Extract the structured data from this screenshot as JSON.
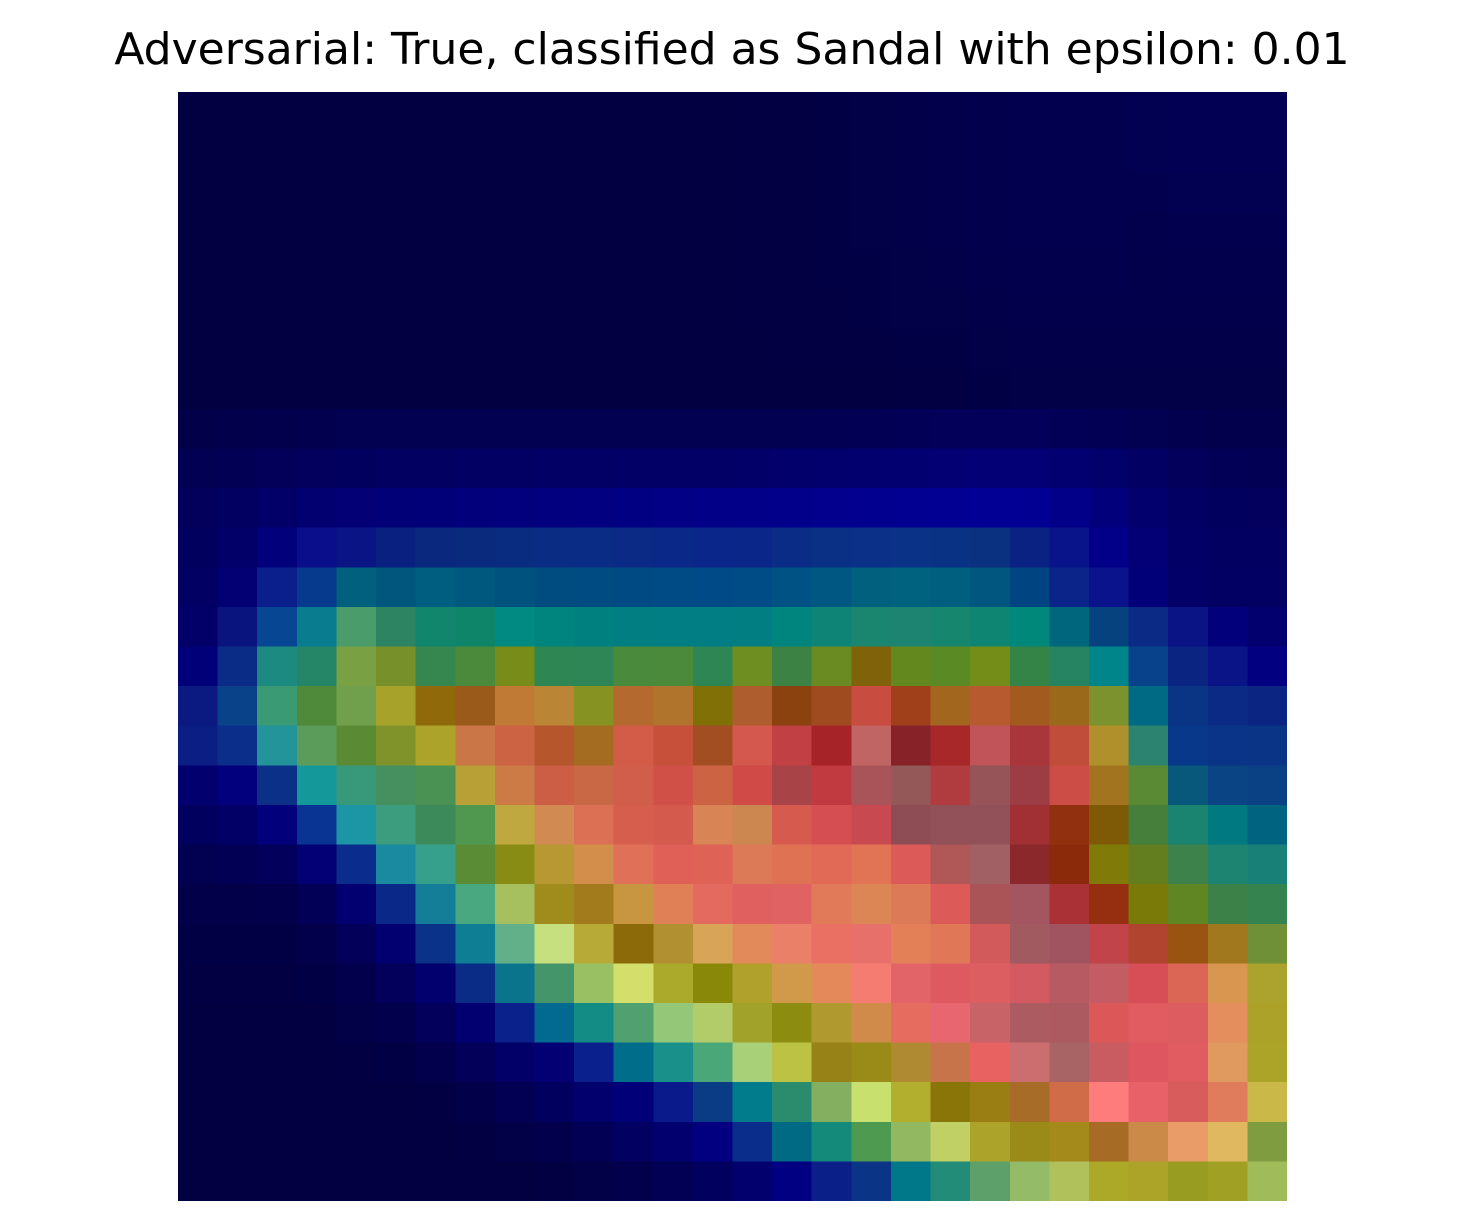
{
  "chart_data": {
    "type": "heatmap",
    "title": "Adversarial: True, classified as Sandal with epsilon: 0.01",
    "xlabel": "",
    "ylabel": "",
    "axes_visible": false,
    "grid": false,
    "rows": 28,
    "cols": 28,
    "cell_colors": [
      [
        "#020040",
        "#020040",
        "#020040",
        "#020040",
        "#020040",
        "#020040",
        "#020040",
        "#020040",
        "#020040",
        "#020040",
        "#020040",
        "#020040",
        "#020040",
        "#020040",
        "#020042",
        "#020042",
        "#020044",
        "#020046",
        "#020048",
        "#02004a",
        "#02004c",
        "#02004e",
        "#02004e",
        "#02004e",
        "#020050",
        "#020052",
        "#020052",
        "#020052"
      ],
      [
        "#020040",
        "#020040",
        "#020040",
        "#020040",
        "#020040",
        "#020040",
        "#020040",
        "#020040",
        "#020040",
        "#020040",
        "#020040",
        "#020040",
        "#020040",
        "#020040",
        "#020042",
        "#020042",
        "#020044",
        "#020046",
        "#020048",
        "#02004a",
        "#02004c",
        "#02004e",
        "#02004e",
        "#02004e",
        "#020050",
        "#020052",
        "#020052",
        "#020052"
      ],
      [
        "#020040",
        "#020040",
        "#020040",
        "#020040",
        "#020040",
        "#020040",
        "#020040",
        "#020040",
        "#020040",
        "#020040",
        "#020040",
        "#020040",
        "#020040",
        "#020040",
        "#020042",
        "#020042",
        "#020044",
        "#020046",
        "#020048",
        "#02004a",
        "#02004c",
        "#02004e",
        "#02004e",
        "#02004e",
        "#02004e",
        "#020050",
        "#020050",
        "#020050"
      ],
      [
        "#020040",
        "#020040",
        "#020040",
        "#020040",
        "#020040",
        "#020040",
        "#020040",
        "#020040",
        "#020040",
        "#020040",
        "#020040",
        "#020040",
        "#020040",
        "#020040",
        "#020042",
        "#020042",
        "#020044",
        "#020046",
        "#020048",
        "#02004a",
        "#02004c",
        "#02004e",
        "#02004e",
        "#02004e",
        "#02004c",
        "#02004e",
        "#02004e",
        "#02004e"
      ],
      [
        "#020040",
        "#020040",
        "#020040",
        "#020040",
        "#020040",
        "#020040",
        "#020040",
        "#020040",
        "#020040",
        "#020040",
        "#020040",
        "#020040",
        "#020040",
        "#020040",
        "#020042",
        "#020042",
        "#020044",
        "#020044",
        "#020046",
        "#020048",
        "#02004a",
        "#02004c",
        "#02004c",
        "#02004c",
        "#02004a",
        "#02004c",
        "#02004c",
        "#02004c"
      ],
      [
        "#020040",
        "#020040",
        "#020040",
        "#020040",
        "#020040",
        "#020040",
        "#020040",
        "#020040",
        "#020040",
        "#020040",
        "#020040",
        "#020040",
        "#020040",
        "#020040",
        "#020042",
        "#020042",
        "#020042",
        "#020044",
        "#020046",
        "#020046",
        "#020048",
        "#02004a",
        "#02004a",
        "#02004a",
        "#02004a",
        "#02004a",
        "#02004a",
        "#02004a"
      ],
      [
        "#020040",
        "#020040",
        "#020040",
        "#020040",
        "#020040",
        "#020040",
        "#020040",
        "#020040",
        "#020040",
        "#020040",
        "#020040",
        "#020040",
        "#020040",
        "#020040",
        "#020040",
        "#020042",
        "#020042",
        "#020042",
        "#020044",
        "#020044",
        "#020046",
        "#020048",
        "#020048",
        "#020048",
        "#020048",
        "#020048",
        "#020048",
        "#020048"
      ],
      [
        "#020040",
        "#020040",
        "#020040",
        "#020040",
        "#020040",
        "#020040",
        "#020040",
        "#020040",
        "#020040",
        "#020040",
        "#020040",
        "#020040",
        "#020040",
        "#020040",
        "#020040",
        "#020040",
        "#020040",
        "#020040",
        "#020042",
        "#020042",
        "#020044",
        "#020046",
        "#020046",
        "#020046",
        "#020046",
        "#020046",
        "#020046",
        "#020046"
      ],
      [
        "#020048",
        "#02004a",
        "#02004c",
        "#02004e",
        "#020050",
        "#020050",
        "#020050",
        "#020050",
        "#020050",
        "#020050",
        "#020050",
        "#020050",
        "#020050",
        "#020050",
        "#020050",
        "#020050",
        "#020052",
        "#020054",
        "#020056",
        "#020058",
        "#020058",
        "#020058",
        "#020056",
        "#020054",
        "#020050",
        "#02004e",
        "#02004c",
        "#02004c"
      ],
      [
        "#020052",
        "#020054",
        "#020058",
        "#02005c",
        "#02005e",
        "#020060",
        "#020060",
        "#020062",
        "#020062",
        "#020064",
        "#020064",
        "#020066",
        "#020066",
        "#020066",
        "#020068",
        "#02006a",
        "#02006c",
        "#02006e",
        "#020070",
        "#020072",
        "#020074",
        "#020074",
        "#020070",
        "#02006a",
        "#020062",
        "#02005a",
        "#020056",
        "#020054"
      ],
      [
        "#02005a",
        "#020060",
        "#020068",
        "#020070",
        "#020074",
        "#020076",
        "#020078",
        "#02007a",
        "#02007c",
        "#02007e",
        "#020080",
        "#020082",
        "#020084",
        "#020086",
        "#020088",
        "#02008a",
        "#02008c",
        "#02008e",
        "#020090",
        "#020092",
        "#020094",
        "#020092",
        "#020088",
        "#02007a",
        "#02006c",
        "#020062",
        "#02005e",
        "#02005c"
      ],
      [
        "#02005e",
        "#020068",
        "#02007a",
        "#0a0e8a",
        "#0a1484",
        "#0a2080",
        "#0a287e",
        "#0a2a7e",
        "#0a2c80",
        "#0a2c82",
        "#0a2c84",
        "#0a2a86",
        "#0a2888",
        "#0a268a",
        "#0a2688",
        "#0a2c86",
        "#0a3086",
        "#0a3088",
        "#0a3286",
        "#0a3284",
        "#0a3080",
        "#0a2282",
        "#0a148a",
        "#020088",
        "#020074",
        "#020066",
        "#020060",
        "#020060"
      ],
      [
        "#020062",
        "#020072",
        "#0a1e8c",
        "#063a8c",
        "#00607e",
        "#00567c",
        "#005e80",
        "#00587e",
        "#00527e",
        "#004c80",
        "#004c82",
        "#004a84",
        "#004a86",
        "#004a88",
        "#004c86",
        "#005284",
        "#005882",
        "#00607e",
        "#00627e",
        "#005e7e",
        "#00567e",
        "#004482",
        "#0a248a",
        "#0a128c",
        "#020078",
        "#020068",
        "#020062",
        "#020062"
      ],
      [
        "#020068",
        "#0a147e",
        "#064692",
        "#0a7c90",
        "#4a9c6a",
        "#2c8462",
        "#12866c",
        "#0e8468",
        "#008a82",
        "#00847e",
        "#00807e",
        "#007e82",
        "#007e84",
        "#007e84",
        "#007e82",
        "#00847e",
        "#0e8476",
        "#1a8670",
        "#1c8470",
        "#16866e",
        "#0e8472",
        "#00887a",
        "#00667e",
        "#06427e",
        "#0a2a86",
        "#0a1484",
        "#02007a",
        "#02006e"
      ],
      [
        "#020078",
        "#0a2c86",
        "#1c8a80",
        "#248666",
        "#7aa044",
        "#78902a",
        "#368650",
        "#4a8a3a",
        "#788c1a",
        "#2e8652",
        "#2e8656",
        "#4a8a3c",
        "#4a8a3a",
        "#2e8654",
        "#6e8e22",
        "#3c8244",
        "#6a8a22",
        "#80620a",
        "#62881e",
        "#5a8a24",
        "#748c18",
        "#348448",
        "#268462",
        "#00868a",
        "#08428a",
        "#0a2482",
        "#0a1486",
        "#020080"
      ],
      [
        "#0a1a80",
        "#0a428a",
        "#3a9a74",
        "#4e8a3a",
        "#70a04c",
        "#a6a22a",
        "#906a0a",
        "#9a5a1a",
        "#c07a36",
        "#ba8636",
        "#869222",
        "#b46a2e",
        "#b0742c",
        "#807006",
        "#ae5e2e",
        "#8c420e",
        "#a04a20",
        "#c84c40",
        "#a0401a",
        "#a2661e",
        "#b85a30",
        "#a25a1e",
        "#9a6a1a",
        "#7c922e",
        "#006a84",
        "#0a3484",
        "#0a2a86",
        "#0a2682"
      ],
      [
        "#0a1e84",
        "#0a2e8a",
        "#22949a",
        "#5c9c5a",
        "#5a8a34",
        "#80922a",
        "#aca42a",
        "#ca7646",
        "#cc6444",
        "#b6562c",
        "#a46c20",
        "#d25c48",
        "#c6503a",
        "#a24e22",
        "#d4584e",
        "#c04044",
        "#a62428",
        "#c06464",
        "#862228",
        "#a8282a",
        "#c05458",
        "#a8363a",
        "#c04c3a",
        "#b0902a",
        "#2c8470",
        "#08388a",
        "#0a3488",
        "#0a3486"
      ],
      [
        "#02006e",
        "#02007c",
        "#0a3088",
        "#14989a",
        "#38987a",
        "#469060",
        "#4a9254",
        "#b8a036",
        "#cc7a46",
        "#cc5e46",
        "#c86844",
        "#d05e4a",
        "#d05048",
        "#cc6444",
        "#d04a48",
        "#a84448",
        "#c03a40",
        "#a85458",
        "#945858",
        "#b03c40",
        "#965458",
        "#9c3c44",
        "#cc4c46",
        "#a27420",
        "#5a8a34",
        "#08587c",
        "#0a4484",
        "#0a4084"
      ],
      [
        "#02005e",
        "#020066",
        "#02007a",
        "#0a3494",
        "#1c96a4",
        "#3c9c7e",
        "#3c8a5a",
        "#509850",
        "#c0a840",
        "#d08a52",
        "#dc7054",
        "#d65e4c",
        "#d45a4e",
        "#d88454",
        "#cc8650",
        "#d65a4e",
        "#d44e52",
        "#c84a50",
        "#8e4c54",
        "#925058",
        "#925058",
        "#a03034",
        "#90300e",
        "#7e5a06",
        "#467e3c",
        "#1a8470",
        "#007a80",
        "#006480"
      ],
      [
        "#020050",
        "#020054",
        "#02005a",
        "#020074",
        "#0a2c8c",
        "#1a8aa0",
        "#36a08c",
        "#5a8c36",
        "#888c14",
        "#b89832",
        "#d48e4c",
        "#e07058",
        "#e06058",
        "#de6256",
        "#dc7a58",
        "#e07254",
        "#e06a56",
        "#e07454",
        "#dc5a58",
        "#b05858",
        "#a06064",
        "#8a282c",
        "#8a2a0a",
        "#807a08",
        "#627e1e",
        "#3c824a",
        "#1e8472",
        "#188076"
      ],
      [
        "#020048",
        "#020048",
        "#02004a",
        "#020056",
        "#020070",
        "#0a2888",
        "#147e98",
        "#4aa880",
        "#a6c060",
        "#a08c1c",
        "#a27c1c",
        "#c89640",
        "#e08056",
        "#e46a60",
        "#e06060",
        "#e06262",
        "#e07a58",
        "#dc8656",
        "#dc7a58",
        "#dc5a58",
        "#aa5458",
        "#a45660",
        "#aa3236",
        "#962e10",
        "#7a7a08",
        "#608624",
        "#3c8248",
        "#358450"
      ],
      [
        "#020044",
        "#020044",
        "#020044",
        "#02004a",
        "#020058",
        "#020070",
        "#0a3288",
        "#0e7e94",
        "#62b08a",
        "#c6e080",
        "#b8aa36",
        "#8c6a0a",
        "#b09030",
        "#d8a458",
        "#e28a5a",
        "#ea8068",
        "#ea7064",
        "#e8706a",
        "#e48058",
        "#e07858",
        "#d25a5a",
        "#a05a60",
        "#a05460",
        "#c0444a",
        "#b0442e",
        "#985410",
        "#a2781e",
        "#709038"
      ],
      [
        "#020042",
        "#020042",
        "#020042",
        "#020044",
        "#02004c",
        "#02005a",
        "#02006e",
        "#0a2c86",
        "#0a748c",
        "#44966a",
        "#9ac064",
        "#d4de6a",
        "#acaa2a",
        "#8a8808",
        "#b0a02c",
        "#d09a4a",
        "#e48a5a",
        "#f47c70",
        "#e26468",
        "#dc5a60",
        "#dc5e60",
        "#d25a60",
        "#b85a62",
        "#c45c64",
        "#d84e56",
        "#dc6656",
        "#d89650",
        "#aca22e"
      ],
      [
        "#020040",
        "#020040",
        "#020040",
        "#020040",
        "#020046",
        "#02004c",
        "#02005a",
        "#020070",
        "#0a208a",
        "#026a90",
        "#148c86",
        "#50a070",
        "#94c878",
        "#b2cc6a",
        "#a0a22a",
        "#8c8c10",
        "#b09a30",
        "#d08a4a",
        "#e66c60",
        "#e86670",
        "#c86468",
        "#ac5c60",
        "#ac5a60",
        "#dc5858",
        "#e05c60",
        "#dc5c60",
        "#e48e5e",
        "#aca22a"
      ],
      [
        "#020040",
        "#020040",
        "#020040",
        "#020040",
        "#020042",
        "#020044",
        "#02004c",
        "#020058",
        "#020068",
        "#020072",
        "#0a208c",
        "#006e8a",
        "#1a908a",
        "#4aa878",
        "#a8d078",
        "#bcc244",
        "#968216",
        "#9a8a18",
        "#b08a32",
        "#c8744a",
        "#e86262",
        "#cc6e70",
        "#a86464",
        "#c85c60",
        "#de5660",
        "#e05c60",
        "#e09a60",
        "#aca428"
      ],
      [
        "#020040",
        "#020040",
        "#020040",
        "#020040",
        "#020040",
        "#020040",
        "#020042",
        "#020048",
        "#020052",
        "#02005e",
        "#02006c",
        "#020078",
        "#0a1a8a",
        "#0a3c86",
        "#007c8c",
        "#2a8c6c",
        "#84ae60",
        "#c8e06e",
        "#b2ae2e",
        "#8a7608",
        "#9a7e14",
        "#a66c28",
        "#d06c48",
        "#ff7c7c",
        "#e86068",
        "#d85c5c",
        "#e07c5c",
        "#cab848"
      ],
      [
        "#020040",
        "#020040",
        "#020040",
        "#020040",
        "#020040",
        "#020040",
        "#020040",
        "#020042",
        "#020046",
        "#02004c",
        "#020054",
        "#020060",
        "#02006e",
        "#020080",
        "#0a2c8a",
        "#006a84",
        "#148a7a",
        "#4e9a50",
        "#92b862",
        "#c0d064",
        "#aca42a",
        "#9a8a18",
        "#a48a1a",
        "#a66c26",
        "#cc8a48",
        "#ea9c68",
        "#e0b860",
        "#809c40"
      ],
      [
        "#020040",
        "#020040",
        "#020040",
        "#020040",
        "#020040",
        "#020040",
        "#020040",
        "#020040",
        "#020040",
        "#020042",
        "#020046",
        "#02004c",
        "#020054",
        "#02005e",
        "#02006c",
        "#020082",
        "#0a2088",
        "#0a3486",
        "#00788a",
        "#228c78",
        "#5ea06a",
        "#94bc68",
        "#b0c05a",
        "#aca828",
        "#aca428",
        "#989c20",
        "#a0a024",
        "#a0bc5a"
      ]
    ]
  }
}
